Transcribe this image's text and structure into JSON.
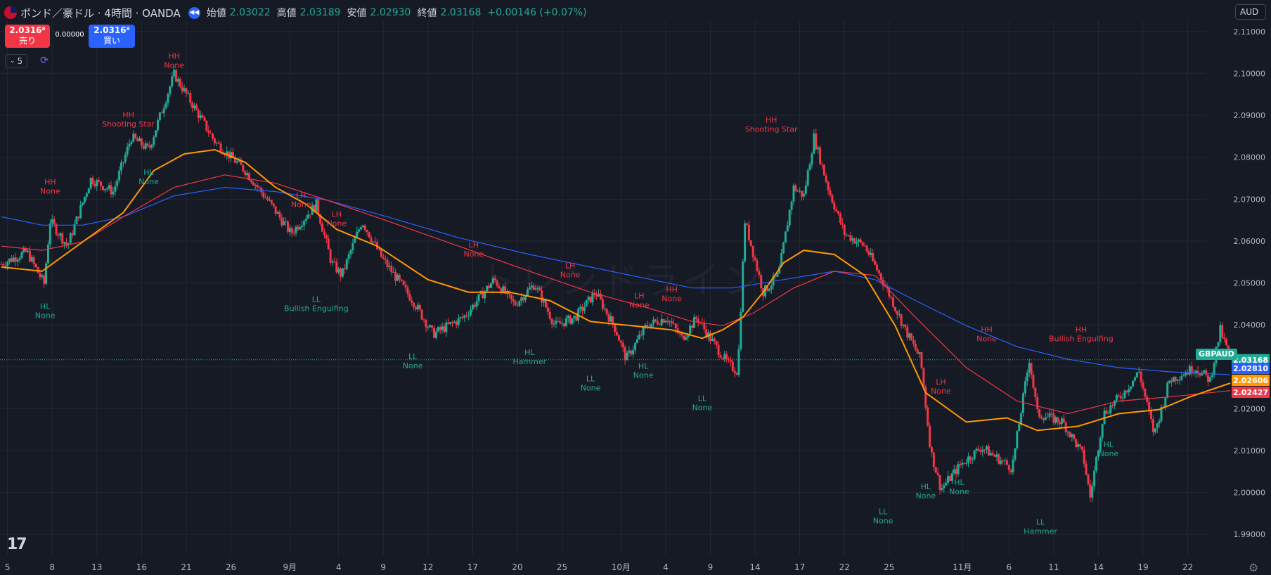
{
  "header": {
    "title": "ポンド／豪ドル · 4時間 · OANDA",
    "ohlc": [
      {
        "label": "始値",
        "value": "2.03022"
      },
      {
        "label": "高値",
        "value": "2.03189"
      },
      {
        "label": "安値",
        "value": "2.02930"
      },
      {
        "label": "終値",
        "value": "2.03168"
      }
    ],
    "change": "+0.00146 (+0.07%)"
  },
  "trade": {
    "sell_price": "2.0316⁸",
    "sell_label": "売り",
    "spread": "0.00000",
    "buy_price": "2.0316⁸",
    "buy_label": "買い"
  },
  "interval_value": "5",
  "currency": "AUD",
  "watermark": "トレンドライン",
  "symbol_tag": "GBPAUD",
  "colors": {
    "background": "#161a25",
    "up_candle": "#22ab94",
    "down_candle": "#f23645",
    "ma_fast": "#ff9800",
    "ma_mid": "#f23645",
    "ma_slow": "#2962ff",
    "label_high": "#f23645",
    "label_low": "#22ab94"
  },
  "icons": {
    "flag": "gbp-aud-flag-icon",
    "replay": "replay-icon",
    "interval": "chevron-down-icon",
    "sync": "sync-icon",
    "logo": "tradingview-logo",
    "settings": "gear-icon"
  },
  "chart_data": {
    "type": "candlestick",
    "symbol": "GBPAUD",
    "ylim": [
      1.985,
      2.1125
    ],
    "yticks": [
      "2.11000",
      "2.10000",
      "2.09000",
      "2.08000",
      "2.07000",
      "2.06000",
      "2.05000",
      "2.04000",
      "2.03000",
      "2.02000",
      "2.01000",
      "2.00000",
      "1.99000"
    ],
    "xticks": [
      "5",
      "8",
      "13",
      "16",
      "21",
      "26",
      "9月",
      "4",
      "9",
      "12",
      "17",
      "20",
      "25",
      "10月",
      "4",
      "9",
      "14",
      "17",
      "22",
      "25",
      "11月",
      "6",
      "11",
      "14",
      "19",
      "22"
    ],
    "x_range": [
      0,
      116
    ],
    "xtick_positions": [
      0.6,
      5,
      9.4,
      13.8,
      18.2,
      22.6,
      28.4,
      33.2,
      37.6,
      42,
      46.4,
      50.8,
      55.2,
      61,
      65.4,
      69.8,
      74.2,
      78.6,
      83,
      87.4,
      94.6,
      99.2,
      103.6,
      108,
      112.4,
      116.8
    ],
    "price_path": [
      [
        0,
        2.0545
      ],
      [
        2.5,
        2.0575
      ],
      [
        4.2,
        2.0498
      ],
      [
        4.8,
        2.0648
      ],
      [
        6.5,
        2.0588
      ],
      [
        8.8,
        2.0748
      ],
      [
        11,
        2.0718
      ],
      [
        12.8,
        2.0848
      ],
      [
        14.5,
        2.0818
      ],
      [
        17,
        2.0998
      ],
      [
        19,
        2.0918
      ],
      [
        21,
        2.0838
      ],
      [
        24,
        2.0768
      ],
      [
        26.5,
        2.0688
      ],
      [
        28.5,
        2.0618
      ],
      [
        31,
        2.0688
      ],
      [
        32.5,
        2.0548
      ],
      [
        33.5,
        2.0518
      ],
      [
        35.5,
        2.0648
      ],
      [
        37.5,
        2.0558
      ],
      [
        40.5,
        2.0458
      ],
      [
        42.5,
        2.0378
      ],
      [
        45.5,
        2.0418
      ],
      [
        48.5,
        2.0508
      ],
      [
        50.5,
        2.0448
      ],
      [
        52.5,
        2.0498
      ],
      [
        54.5,
        2.0398
      ],
      [
        56.5,
        2.0418
      ],
      [
        58.5,
        2.0478
      ],
      [
        60.5,
        2.0388
      ],
      [
        61.5,
        2.0318
      ],
      [
        63.5,
        2.0398
      ],
      [
        65.5,
        2.0418
      ],
      [
        67,
        2.0368
      ],
      [
        68.5,
        2.0418
      ],
      [
        69.5,
        2.0378
      ],
      [
        71.5,
        2.0308
      ],
      [
        72.5,
        2.0288
      ],
      [
        73.2,
        2.0648
      ],
      [
        75,
        2.0478
      ],
      [
        76.5,
        2.0518
      ],
      [
        78,
        2.0728
      ],
      [
        79,
        2.0708
      ],
      [
        80,
        2.0848
      ],
      [
        81.5,
        2.0718
      ],
      [
        83,
        2.0618
      ],
      [
        85,
        2.0588
      ],
      [
        86.5,
        2.0518
      ],
      [
        87.5,
        2.0468
      ],
      [
        89,
        2.0388
      ],
      [
        90.5,
        2.0318
      ],
      [
        91.5,
        2.0098
      ],
      [
        92.5,
        2.0008
      ],
      [
        94.5,
        2.0068
      ],
      [
        96.5,
        2.0108
      ],
      [
        99.5,
        2.0058
      ],
      [
        101.2,
        2.0318
      ],
      [
        102,
        2.0188
      ],
      [
        104.5,
        2.0168
      ],
      [
        106.5,
        2.0088
      ],
      [
        107.2,
        1.9988
      ],
      [
        108.5,
        2.0188
      ],
      [
        110.5,
        2.0238
      ],
      [
        112,
        2.0288
      ],
      [
        113.5,
        2.0138
      ],
      [
        115,
        2.0268
      ],
      [
        117.5,
        2.0298
      ],
      [
        119,
        2.0268
      ],
      [
        120,
        2.0388
      ],
      [
        121,
        2.03168
      ]
    ],
    "annotations": [
      {
        "text": [
          "HH",
          "None"
        ],
        "t": 17,
        "price": 2.1035,
        "type": "high"
      },
      {
        "text": [
          "HH",
          "Shooting Star"
        ],
        "t": 12.5,
        "price": 2.0895,
        "type": "high"
      },
      {
        "text": [
          "HH",
          "None"
        ],
        "t": 4.8,
        "price": 2.0735,
        "type": "high"
      },
      {
        "text": [
          "HL",
          "None"
        ],
        "t": 14.5,
        "price": 2.0758,
        "type": "low"
      },
      {
        "text": [
          "HL",
          "None"
        ],
        "t": 4.3,
        "price": 2.0438,
        "type": "low"
      },
      {
        "text": [
          "LH",
          "None"
        ],
        "t": 29.5,
        "price": 2.0703,
        "type": "high"
      },
      {
        "text": [
          "LH",
          "None"
        ],
        "t": 33,
        "price": 2.0658,
        "type": "high"
      },
      {
        "text": [
          "LL",
          "Bullish Engulfing"
        ],
        "t": 31,
        "price": 2.0455,
        "type": "low"
      },
      {
        "text": [
          "LH",
          "None"
        ],
        "t": 46.5,
        "price": 2.0585,
        "type": "high"
      },
      {
        "text": [
          "LL",
          "None"
        ],
        "t": 40.5,
        "price": 2.0318,
        "type": "low"
      },
      {
        "text": [
          "HL",
          "Hammer"
        ],
        "t": 52,
        "price": 2.0328,
        "type": "low"
      },
      {
        "text": [
          "LH",
          "None"
        ],
        "t": 56,
        "price": 2.0535,
        "type": "high"
      },
      {
        "text": [
          "LL",
          "None"
        ],
        "t": 58,
        "price": 2.0265,
        "type": "low"
      },
      {
        "text": [
          "LH",
          "None"
        ],
        "t": 62.8,
        "price": 2.0463,
        "type": "high"
      },
      {
        "text": [
          "HH",
          "None"
        ],
        "t": 66,
        "price": 2.0478,
        "type": "high"
      },
      {
        "text": [
          "HL",
          "None"
        ],
        "t": 63.2,
        "price": 2.0295,
        "type": "low"
      },
      {
        "text": [
          "LL",
          "None"
        ],
        "t": 69,
        "price": 2.0218,
        "type": "low"
      },
      {
        "text": [
          "HH",
          "Shooting Star"
        ],
        "t": 75.8,
        "price": 2.0883,
        "type": "high"
      },
      {
        "text": [
          "LH",
          "None"
        ],
        "t": 92.5,
        "price": 2.0258,
        "type": "high"
      },
      {
        "text": [
          "HH",
          "None"
        ],
        "t": 97,
        "price": 2.0383,
        "type": "high"
      },
      {
        "text": [
          "HH",
          "Bullish Engulfing"
        ],
        "t": 106.3,
        "price": 2.0383,
        "type": "high"
      },
      {
        "text": [
          "LL",
          "None"
        ],
        "t": 86.8,
        "price": 1.9948,
        "type": "low"
      },
      {
        "text": [
          "HL",
          "None"
        ],
        "t": 91,
        "price": 2.0008,
        "type": "low"
      },
      {
        "text": [
          "HL",
          "None"
        ],
        "t": 94.3,
        "price": 2.0018,
        "type": "low"
      },
      {
        "text": [
          "LL",
          "Hammer"
        ],
        "t": 102.3,
        "price": 1.9923,
        "type": "low"
      },
      {
        "text": [
          "HL",
          "None"
        ],
        "t": 109,
        "price": 2.0108,
        "type": "low"
      }
    ],
    "moving_averages": [
      {
        "key": "ma_slow",
        "points": [
          [
            0,
            2.0658
          ],
          [
            4,
            2.0638
          ],
          [
            8,
            2.0638
          ],
          [
            12,
            2.0658
          ],
          [
            17,
            2.0708
          ],
          [
            22,
            2.0728
          ],
          [
            27,
            2.0718
          ],
          [
            32,
            2.0698
          ],
          [
            38,
            2.0658
          ],
          [
            45,
            2.0608
          ],
          [
            52,
            2.0568
          ],
          [
            58,
            2.0538
          ],
          [
            64,
            2.0508
          ],
          [
            68,
            2.0488
          ],
          [
            72,
            2.0488
          ],
          [
            77,
            2.0508
          ],
          [
            82,
            2.0528
          ],
          [
            86,
            2.0508
          ],
          [
            90,
            2.0458
          ],
          [
            95,
            2.0398
          ],
          [
            100,
            2.0348
          ],
          [
            105,
            2.0318
          ],
          [
            110,
            2.0298
          ],
          [
            115,
            2.0288
          ],
          [
            121,
            2.0281
          ]
        ]
      },
      {
        "key": "ma_mid",
        "points": [
          [
            0,
            2.0588
          ],
          [
            4,
            2.0578
          ],
          [
            8,
            2.0598
          ],
          [
            12,
            2.0658
          ],
          [
            17,
            2.0728
          ],
          [
            22,
            2.0758
          ],
          [
            27,
            2.0738
          ],
          [
            32,
            2.0698
          ],
          [
            38,
            2.0648
          ],
          [
            45,
            2.0588
          ],
          [
            52,
            2.0528
          ],
          [
            58,
            2.0478
          ],
          [
            64,
            2.0438
          ],
          [
            68,
            2.0408
          ],
          [
            71,
            2.0398
          ],
          [
            74,
            2.0428
          ],
          [
            78,
            2.0488
          ],
          [
            82,
            2.0528
          ],
          [
            86,
            2.0518
          ],
          [
            90,
            2.0418
          ],
          [
            95,
            2.0298
          ],
          [
            100,
            2.0218
          ],
          [
            105,
            2.0188
          ],
          [
            110,
            2.0218
          ],
          [
            115,
            2.0228
          ],
          [
            121,
            2.0243
          ]
        ]
      },
      {
        "key": "ma_fast",
        "points": [
          [
            0,
            2.0538
          ],
          [
            4,
            2.0528
          ],
          [
            8,
            2.0598
          ],
          [
            12,
            2.0668
          ],
          [
            15,
            2.0768
          ],
          [
            18,
            2.0808
          ],
          [
            21,
            2.0818
          ],
          [
            24,
            2.0788
          ],
          [
            27,
            2.0728
          ],
          [
            30,
            2.0688
          ],
          [
            33,
            2.0628
          ],
          [
            37,
            2.0588
          ],
          [
            42,
            2.0508
          ],
          [
            46,
            2.0478
          ],
          [
            50,
            2.0478
          ],
          [
            54,
            2.0458
          ],
          [
            58,
            2.0408
          ],
          [
            62,
            2.0398
          ],
          [
            66,
            2.0388
          ],
          [
            69,
            2.0368
          ],
          [
            71,
            2.0388
          ],
          [
            73,
            2.0418
          ],
          [
            75,
            2.0478
          ],
          [
            77,
            2.0548
          ],
          [
            79,
            2.0578
          ],
          [
            82,
            2.0568
          ],
          [
            85,
            2.0518
          ],
          [
            88,
            2.0398
          ],
          [
            91,
            2.0238
          ],
          [
            95,
            2.0168
          ],
          [
            99,
            2.0178
          ],
          [
            102,
            2.0148
          ],
          [
            106,
            2.0158
          ],
          [
            110,
            2.0188
          ],
          [
            114,
            2.0198
          ],
          [
            117,
            2.0228
          ],
          [
            121,
            2.0261
          ]
        ]
      }
    ],
    "price_tags": [
      {
        "value": "2.03168",
        "key": "up_candle"
      },
      {
        "value": "2.02810",
        "key": "ma_slow"
      },
      {
        "value": "2.02606",
        "key": "ma_fast"
      },
      {
        "value": "2.02427",
        "key": "ma_mid"
      }
    ],
    "last_price": 2.03168
  }
}
